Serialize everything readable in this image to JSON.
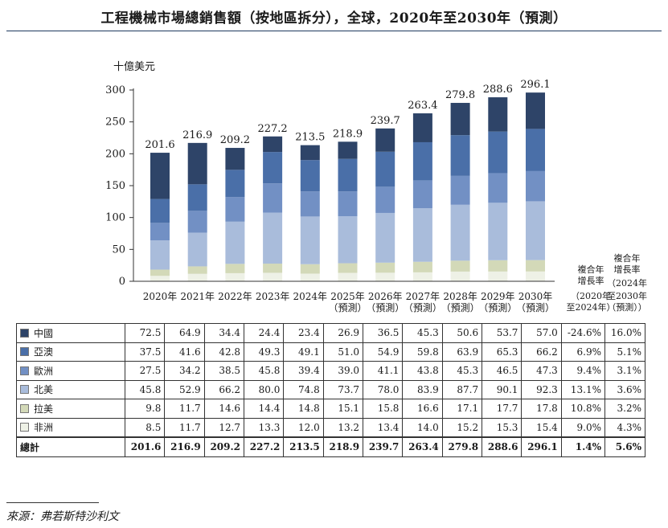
{
  "title": "工程機械市場總銷售額（按地區拆分），全球，2020年至2030年（預測）",
  "source": "來源：弗若斯特沙利文",
  "chart_data": {
    "type": "bar",
    "stacked": true,
    "unit_label": "十億美元",
    "ylim": [
      0,
      300
    ],
    "yticks": [
      0,
      50,
      100,
      150,
      200,
      250,
      300
    ],
    "grid": false,
    "categories": [
      [
        "2020年"
      ],
      [
        "2021年"
      ],
      [
        "2022年"
      ],
      [
        "2023年"
      ],
      [
        "2024年"
      ],
      [
        "2025年",
        "（預測）"
      ],
      [
        "2026年",
        "（預測）"
      ],
      [
        "2027年",
        "（預測）"
      ],
      [
        "2028年",
        "（預測）"
      ],
      [
        "2029年",
        "（預測）"
      ],
      [
        "2030年",
        "（預測）"
      ]
    ],
    "totals": [
      201.6,
      216.9,
      209.2,
      227.2,
      213.5,
      218.9,
      239.7,
      263.4,
      279.8,
      288.6,
      296.1
    ],
    "series": [
      {
        "name": "非洲",
        "color": "#eef1e6",
        "values": [
          8.5,
          11.7,
          12.7,
          13.3,
          12.0,
          13.2,
          13.4,
          14.0,
          15.2,
          15.3,
          15.4
        ],
        "cagr": [
          "9.0%",
          "4.3%"
        ]
      },
      {
        "name": "拉美",
        "color": "#d3d9b8",
        "values": [
          9.8,
          11.7,
          14.6,
          14.4,
          14.8,
          15.1,
          15.8,
          16.6,
          17.1,
          17.7,
          17.8
        ],
        "cagr": [
          "10.8%",
          "3.2%"
        ]
      },
      {
        "name": "北美",
        "color": "#a9bcdb",
        "values": [
          45.8,
          52.9,
          66.2,
          80.0,
          74.8,
          73.7,
          78.0,
          83.9,
          87.7,
          90.1,
          92.3
        ],
        "cagr": [
          "13.1%",
          "3.6%"
        ]
      },
      {
        "name": "歐洲",
        "color": "#7290c4",
        "values": [
          27.5,
          34.2,
          38.5,
          45.8,
          39.4,
          39.0,
          41.1,
          43.8,
          45.3,
          46.5,
          47.3
        ],
        "cagr": [
          "9.4%",
          "3.1%"
        ]
      },
      {
        "name": "亞澳",
        "color": "#4a6fa8",
        "values": [
          37.5,
          41.6,
          42.8,
          49.3,
          49.1,
          51.0,
          54.9,
          59.8,
          63.9,
          65.3,
          66.2
        ],
        "cagr": [
          "6.9%",
          "5.1%"
        ]
      },
      {
        "name": "中國",
        "color": "#2e4468",
        "values": [
          72.5,
          64.9,
          34.4,
          24.4,
          23.4,
          26.9,
          36.5,
          45.3,
          50.6,
          53.7,
          57.0
        ],
        "cagr": [
          "-24.6%",
          "16.0%"
        ]
      }
    ],
    "cagr_headers": [
      [
        "複合年",
        "增長率",
        "（2020年",
        "至2024年）"
      ],
      [
        "複合年",
        "增長率",
        "（2024年",
        "至2030年",
        "（預測））"
      ]
    ],
    "total_row": {
      "label": "總計",
      "cagr": [
        "1.4%",
        "5.6%"
      ]
    }
  }
}
